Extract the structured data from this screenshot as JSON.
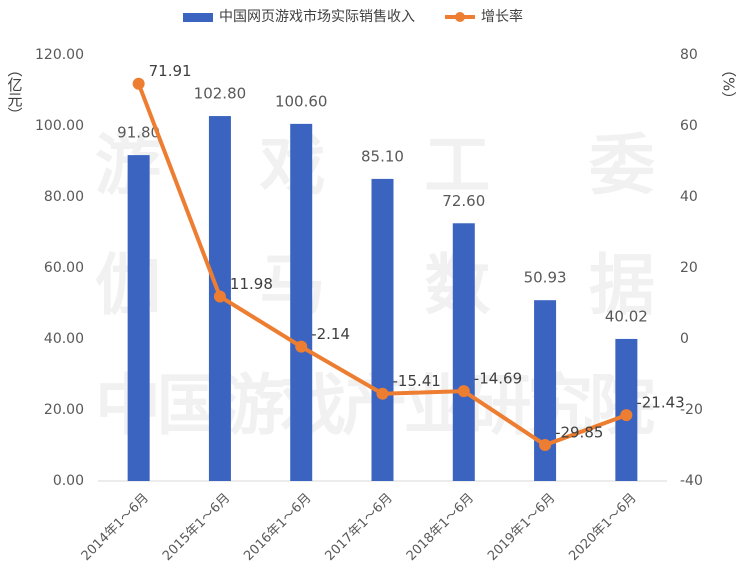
{
  "chart_data": {
    "type": "combo",
    "categories": [
      "2014年1～6月",
      "2015年1～6月",
      "2016年1～6月",
      "2017年1～6月",
      "2018年1～6月",
      "2019年1～6月",
      "2020年1～6月"
    ],
    "series": [
      {
        "name": "中国网页游戏市场实际销售收入",
        "type": "bar",
        "color": "#3b64c1",
        "values": [
          91.8,
          102.8,
          100.6,
          85.1,
          72.6,
          50.93,
          40.02
        ],
        "value_labels": [
          "91.80",
          "102.80",
          "100.60",
          "85.10",
          "72.60",
          "50.93",
          "40.02"
        ]
      },
      {
        "name": "增长率",
        "type": "line",
        "axis": "y2",
        "color": "#ed7d31",
        "values": [
          71.91,
          11.98,
          -2.14,
          -15.41,
          -14.69,
          -29.85,
          -21.43
        ]
      }
    ],
    "y_label": "（亿元）",
    "y2_label": "（%）",
    "ylim": [
      0,
      120
    ],
    "yticks": [
      {
        "value": 0,
        "label": "0.00"
      },
      {
        "value": 20,
        "label": "20.00"
      },
      {
        "value": 40,
        "label": "40.00"
      },
      {
        "value": 60,
        "label": "60.00"
      },
      {
        "value": 80,
        "label": "80.00"
      },
      {
        "value": 100,
        "label": "100.00"
      },
      {
        "value": 120,
        "label": "120.00"
      }
    ],
    "y2lim": [
      -40,
      80
    ],
    "y2ticks": [
      -40,
      -20,
      0,
      20,
      40,
      60,
      80
    ],
    "watermark": [
      "游戏工委",
      "伽马数据",
      "中国游戏产业研究院"
    ]
  }
}
